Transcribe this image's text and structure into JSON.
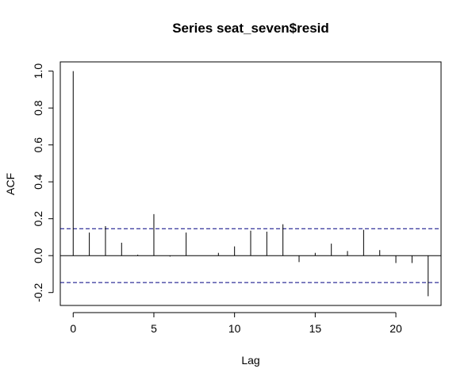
{
  "chart_data": {
    "type": "bar",
    "title": "Series  seat_seven$resid",
    "xlabel": "Lag",
    "ylabel": "ACF",
    "xlim": [
      -0.8,
      22.8
    ],
    "ylim": [
      -0.27,
      1.05
    ],
    "x_ticks": [
      0,
      5,
      10,
      15,
      20
    ],
    "x_tick_labels": [
      "0",
      "5",
      "10",
      "15",
      "20"
    ],
    "y_ticks": [
      -0.2,
      0.0,
      0.2,
      0.4,
      0.6,
      0.8,
      1.0
    ],
    "y_tick_labels": [
      "-0.2",
      "0.0",
      "0.2",
      "0.4",
      "0.6",
      "0.8",
      "1.0"
    ],
    "lags": [
      0,
      1,
      2,
      3,
      4,
      5,
      6,
      7,
      8,
      9,
      10,
      11,
      12,
      13,
      14,
      15,
      16,
      17,
      18,
      19,
      20,
      21,
      22
    ],
    "acf": [
      1.0,
      0.125,
      0.16,
      0.07,
      0.005,
      0.225,
      -0.005,
      0.125,
      0.0,
      0.015,
      0.05,
      0.135,
      0.13,
      0.17,
      -0.035,
      0.015,
      0.065,
      0.025,
      0.14,
      0.03,
      -0.04,
      -0.04,
      -0.22
    ],
    "confidence_bounds": [
      0.146,
      -0.146
    ],
    "zero_line": 0.0,
    "grid": false,
    "bound_color": "#000080",
    "bar_color": "#000000"
  }
}
